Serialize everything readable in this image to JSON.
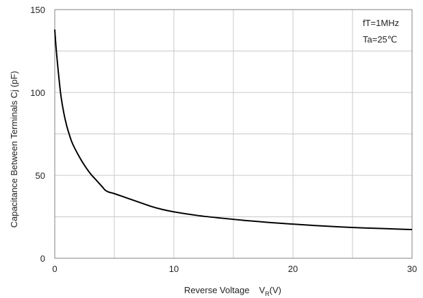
{
  "chart_data": {
    "type": "line",
    "title": "",
    "xlabel": "Reverse Voltage",
    "xlabel_symbol": "V",
    "xlabel_subscript": "R",
    "xlabel_unit": "(V)",
    "ylabel": "Capacitance Between Terminals  Cj (pF)",
    "xlim": [
      0,
      30
    ],
    "ylim": [
      0,
      150
    ],
    "x_ticks": [
      0,
      5,
      10,
      15,
      20,
      25,
      30
    ],
    "x_tick_labels": [
      "0",
      "",
      "10",
      "",
      "20",
      "",
      "30"
    ],
    "y_ticks": [
      0,
      25,
      50,
      75,
      100,
      125,
      150
    ],
    "y_tick_labels": [
      "0",
      "",
      "50",
      "",
      "100",
      "",
      "150"
    ],
    "grid": true,
    "annotations": [
      "fT=1MHz",
      "Ta=25℃"
    ],
    "series": [
      {
        "x": [
          0,
          0.1,
          0.25,
          0.5,
          0.75,
          1,
          1.25,
          1.5,
          2,
          2.5,
          3,
          3.5,
          4,
          4.25,
          4.5,
          5,
          6,
          7,
          8,
          9,
          10,
          12,
          14,
          16,
          18,
          20,
          22,
          24,
          26,
          28,
          30
        ],
        "y": [
          138,
          128,
          116,
          99,
          88,
          80,
          74,
          69,
          62,
          56,
          51,
          47,
          43,
          41,
          40,
          39,
          36.5,
          34,
          31.5,
          29.5,
          28,
          25.8,
          24.2,
          22.8,
          21.6,
          20.6,
          19.7,
          18.9,
          18.3,
          17.8,
          17.3
        ],
        "color": "#000000"
      }
    ]
  }
}
